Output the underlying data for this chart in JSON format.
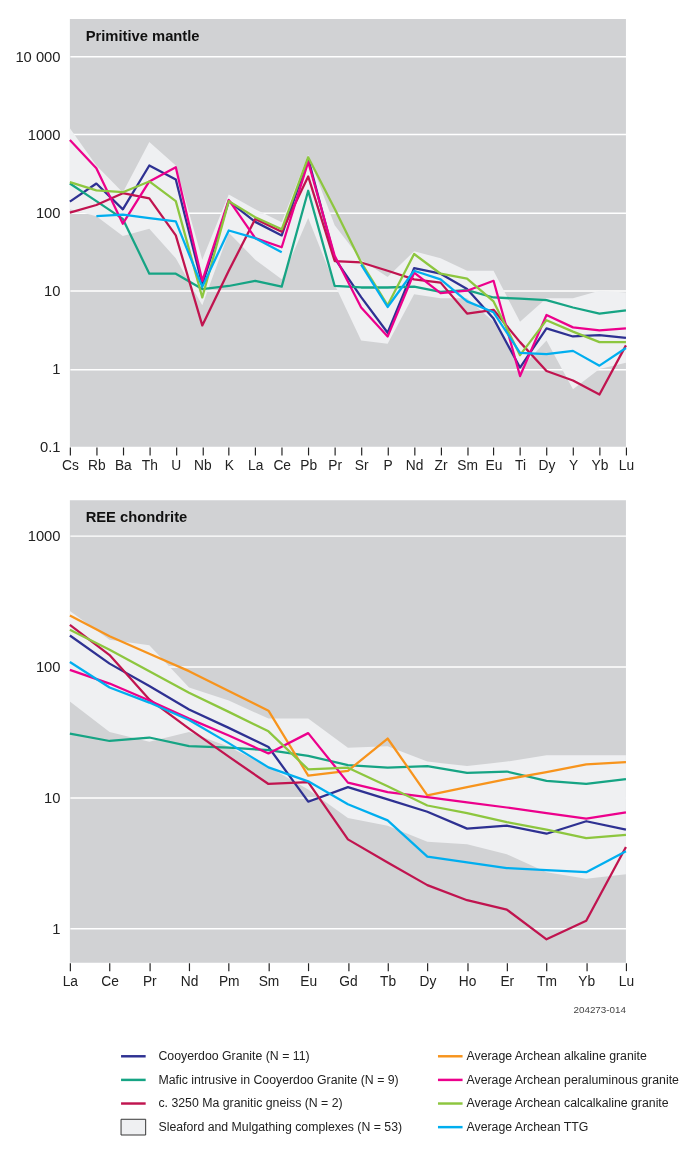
{
  "chart_data": [
    {
      "type": "line",
      "title": "Primitive mantle",
      "categories": [
        "Cs",
        "Rb",
        "Ba",
        "Th",
        "U",
        "Nb",
        "K",
        "La",
        "Ce",
        "Pb",
        "Pr",
        "Sr",
        "P",
        "Nd",
        "Zr",
        "Sm",
        "Eu",
        "Ti",
        "Dy",
        "Y",
        "Yb",
        "Lu"
      ],
      "log": "y",
      "ylim": [
        0.1,
        30000
      ],
      "yticks": [
        0.1,
        1,
        10,
        100,
        1000,
        {
          "value": 10000,
          "label": "10 000"
        }
      ],
      "grid": "y",
      "series": [
        {
          "color": "#2e3192",
          "values": [
            138,
            235,
            110,
            400,
            265,
            12,
            140,
            76,
            51,
            490,
            26,
            8.3,
            2.9,
            19.5,
            16.5,
            10.5,
            4.4,
            1.04,
            3.3,
            2.6,
            2.7,
            2.5
          ]
        },
        {
          "color": "#16a484",
          "values": [
            235,
            140,
            83,
            16.5,
            16.5,
            10.5,
            11.5,
            13.4,
            11.3,
            190,
            11.5,
            11,
            11,
            11.3,
            9.7,
            10.2,
            8.2,
            7.9,
            7.6,
            6.1,
            5.1,
            5.6
          ]
        },
        {
          "color": "#c0144f",
          "values": [
            100,
            125,
            177,
            152,
            51,
            3.6,
            18,
            83,
            57,
            290,
            24,
            23,
            18,
            14,
            12.7,
            5.1,
            5.7,
            2.2,
            0.94,
            0.71,
            0.47,
            2.0
          ]
        },
        {
          "type": "area",
          "color": "#eff0f2",
          "values": [
            null,
            null,
            null,
            null,
            null,
            null,
            null,
            null,
            null,
            null,
            null,
            null,
            null,
            null,
            null,
            null,
            null,
            null,
            null,
            null,
            null,
            null
          ],
          "lower": [
            110,
            90,
            50,
            62,
            26,
            6.5,
            55,
            25,
            14,
            85,
            12,
            2.3,
            2.1,
            9,
            8,
            8,
            4,
            1,
            2.3,
            0.55,
            1.0,
            1.2
          ],
          "upper": [
            1200,
            400,
            180,
            800,
            400,
            25,
            170,
            110,
            75,
            550,
            69,
            25,
            15,
            32,
            26,
            18,
            18,
            4,
            8,
            8,
            10,
            9.5
          ]
        },
        {
          "color": "#ec008c",
          "values": [
            850,
            370,
            72,
            250,
            380,
            13.4,
            145,
            47,
            36,
            445,
            28,
            6.1,
            2.6,
            17,
            9.3,
            10,
            13.4,
            0.81,
            4.9,
            3.4,
            3.1,
            3.3
          ]
        },
        {
          "color": "#8dc63f",
          "values": [
            245,
            192,
            182,
            250,
            140,
            8.2,
            140,
            87,
            61,
            510,
            112,
            23,
            6.5,
            29.5,
            16.5,
            14.3,
            7.3,
            1.5,
            4.2,
            3.0,
            2.2,
            2.2
          ]
        },
        {
          "color": "#00aeef",
          "values": [
            null,
            90,
            94,
            85,
            77,
            11.2,
            59,
            47,
            31,
            null,
            null,
            21.6,
            6.2,
            18,
            14,
            7.3,
            5.3,
            1.6,
            1.55,
            1.7,
            1.1,
            1.85
          ]
        }
      ]
    },
    {
      "type": "line",
      "title": "REE chondrite",
      "categories": [
        "La",
        "Ce",
        "Pr",
        "Nd",
        "Pm",
        "Sm",
        "Eu",
        "Gd",
        "Tb",
        "Dy",
        "Ho",
        "Er",
        "Tm",
        "Yb",
        "Lu"
      ],
      "log": "y",
      "ylim": [
        0.55,
        1850
      ],
      "yticks": [
        1,
        10,
        100,
        1000
      ],
      "grid": "y",
      "legend": "bottom",
      "annotations": [
        "204273-014"
      ],
      "series": [
        {
          "name": "Cooyerdoo Granite (N = 11)",
          "color": "#2e3192",
          "values": [
            172,
            105,
            71,
            47,
            34,
            24.3,
            9.3,
            12,
            9.7,
            7.8,
            5.8,
            6.1,
            5.3,
            6.6,
            5.7
          ]
        },
        {
          "name": "Mafic intrusive in Cooyerdoo Granite (N = 9)",
          "color": "#16a484",
          "values": [
            30.7,
            27,
            28.7,
            24.7,
            24,
            23,
            20.8,
            17.7,
            16.9,
            17.4,
            15.4,
            15.8,
            13.4,
            12.7,
            13.8
          ]
        },
        {
          "name": "c. 3250 Ma granitic gneiss (N = 2)",
          "color": "#c0144f",
          "values": [
            207,
            122,
            56,
            33.5,
            20.5,
            12.7,
            13.1,
            4.8,
            3.2,
            2.15,
            1.65,
            1.4,
            0.83,
            1.15,
            4.2
          ]
        },
        {
          "name": "Sleaford and Mulgathing complexes (N = 53)",
          "type": "area",
          "color": "#eff0f2",
          "values": [
            null,
            null,
            null,
            null,
            null,
            null,
            null,
            null,
            null,
            null,
            null,
            null,
            null,
            null,
            null
          ],
          "lower": [
            54,
            31.6,
            26.6,
            31.6,
            24.4,
            17.2,
            11.5,
            7,
            6.1,
            4.6,
            4.4,
            3.7,
            2.7,
            2.4,
            2.6
          ],
          "upper": [
            265,
            160,
            145,
            69,
            55,
            40,
            40,
            24,
            24.6,
            18.8,
            17.4,
            18.8,
            21,
            21,
            21
          ]
        },
        {
          "name": "Average Archean alkaline granite",
          "color": "#f7941d",
          "values": [
            244,
            170,
            125,
            92,
            65,
            46,
            14.7,
            16,
            28.2,
            10.4,
            12,
            13.8,
            15.6,
            17.9,
            18.6
          ]
        },
        {
          "name": "Average Archean peraluminous granite",
          "color": "#ec008c",
          "values": [
            94,
            74,
            55,
            40,
            29.7,
            21.7,
            31,
            13,
            11,
            10.1,
            9.2,
            8.4,
            7.6,
            6.9,
            7.7
          ]
        },
        {
          "name": "Average Archean calcalkaline granite",
          "color": "#8dc63f",
          "values": [
            190,
            134,
            92,
            63,
            45,
            32,
            16.4,
            16.9,
            12.2,
            8.7,
            7.6,
            6.5,
            5.7,
            4.9,
            5.2
          ]
        },
        {
          "name": "Average Archean TTG",
          "color": "#00aeef",
          "values": [
            108,
            69,
            53,
            39,
            26,
            17,
            13.3,
            8.9,
            6.7,
            3.55,
            3.2,
            2.9,
            2.8,
            2.7,
            3.9
          ]
        }
      ]
    }
  ]
}
